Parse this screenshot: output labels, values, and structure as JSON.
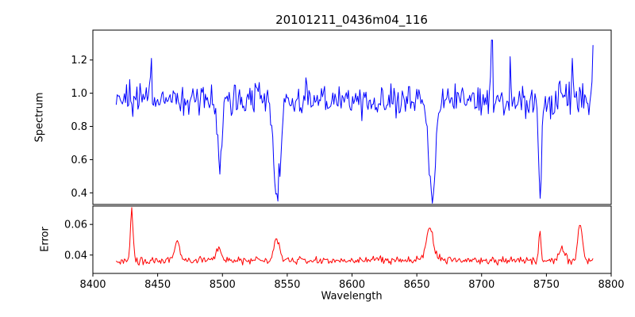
{
  "figure": {
    "background": "#ffffff",
    "frame_color": "#000000"
  },
  "chart_data": [
    {
      "type": "line",
      "name": "spectrum",
      "title": "20101211_0436m04_116",
      "ylabel": "Spectrum",
      "color": "#0000ff",
      "xlim": [
        8400,
        8800
      ],
      "ylim": [
        0.33,
        1.38
      ],
      "yticks": [
        0.4,
        0.6,
        0.8,
        1.0,
        1.2
      ],
      "ytick_labels": [
        "0.4",
        "0.6",
        "0.8",
        "1.0",
        "1.2"
      ],
      "grid": false,
      "legend": "none",
      "x_start": 8418,
      "x_end": 8786,
      "baseline": 0.96,
      "noise_sigma": 0.05,
      "absorption_lines": [
        {
          "center": 8498,
          "depth": 0.4,
          "width": 2.5
        },
        {
          "center": 8542,
          "depth": 0.58,
          "width": 3.5
        },
        {
          "center": 8662,
          "depth": 0.59,
          "width": 3.5
        },
        {
          "center": 8745,
          "depth": 0.56,
          "width": 1.8
        }
      ],
      "spikes": [
        {
          "x": 8445,
          "y": 1.21
        },
        {
          "x": 8708,
          "y": 1.32
        },
        {
          "x": 8722,
          "y": 1.22
        },
        {
          "x": 8770,
          "y": 1.21
        },
        {
          "x": 8786,
          "y": 1.29
        }
      ]
    },
    {
      "type": "line",
      "name": "error",
      "ylabel": "Error",
      "xlabel": "Wavelength",
      "color": "#ff0000",
      "xlim": [
        8400,
        8800
      ],
      "ylim": [
        0.028,
        0.072
      ],
      "xticks": [
        8400,
        8450,
        8500,
        8550,
        8600,
        8650,
        8700,
        8750,
        8800
      ],
      "xtick_labels": [
        "8400",
        "8450",
        "8500",
        "8550",
        "8600",
        "8650",
        "8700",
        "8750",
        "8800"
      ],
      "yticks": [
        0.04,
        0.06
      ],
      "ytick_labels": [
        "0.04",
        "0.06"
      ],
      "grid": false,
      "legend": "none",
      "x_start": 8418,
      "x_end": 8786,
      "baseline": 0.0365,
      "noise_sigma": 0.0013,
      "peaks": [
        {
          "center": 8430,
          "height": 0.033,
          "width": 1.5
        },
        {
          "center": 8465,
          "height": 0.013,
          "width": 2.5
        },
        {
          "center": 8497,
          "height": 0.008,
          "width": 3.0
        },
        {
          "center": 8542,
          "height": 0.014,
          "width": 3.0
        },
        {
          "center": 8660,
          "height": 0.021,
          "width": 4.0
        },
        {
          "center": 8745,
          "height": 0.019,
          "width": 1.2
        },
        {
          "center": 8762,
          "height": 0.008,
          "width": 3.0
        },
        {
          "center": 8776,
          "height": 0.022,
          "width": 2.5
        }
      ]
    }
  ]
}
